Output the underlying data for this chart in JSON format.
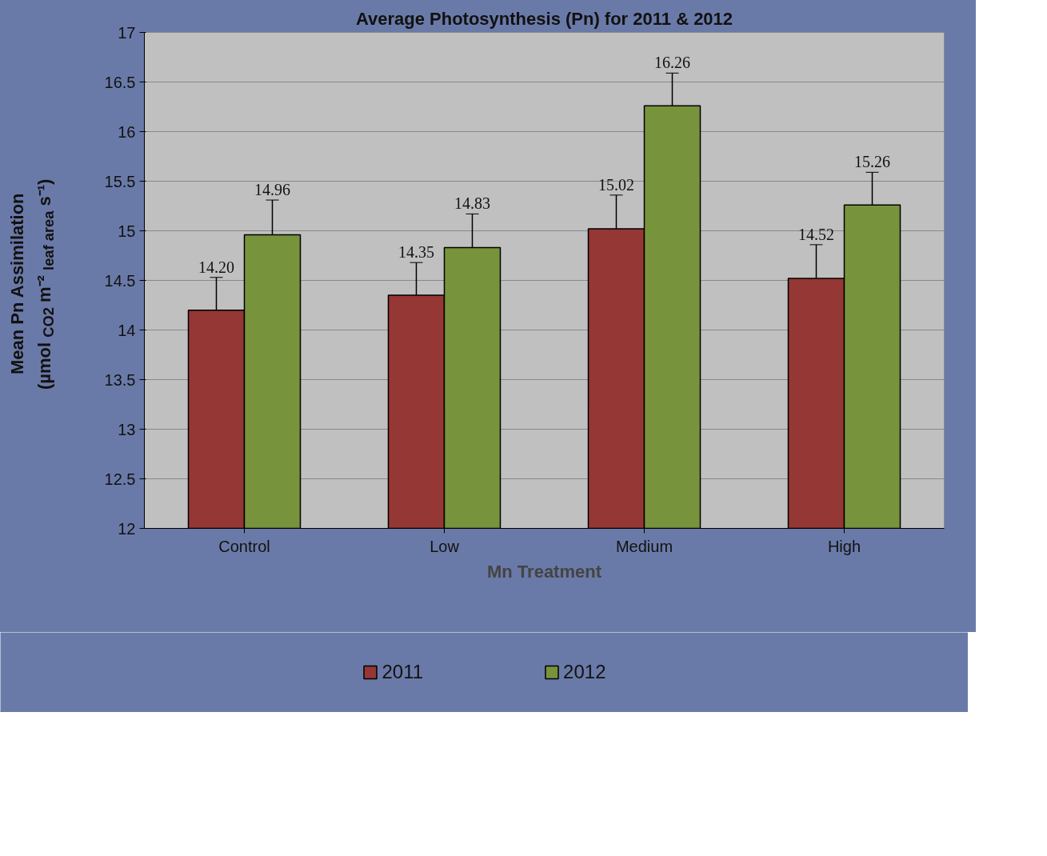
{
  "chart_data": {
    "type": "bar",
    "title": "Average Photosynthesis (Pn) for 2011 & 2012",
    "xlabel": "Mn Treatment",
    "ylabel": "Mean Pn Assimilation\n(µmol $_{CO2}$ m⁻² $_{leaf area}$ s⁻¹)",
    "categories": [
      "Control",
      "Low",
      "Medium",
      "High"
    ],
    "series": [
      {
        "name": "2011",
        "color": "#953735",
        "values": [
          14.2,
          14.35,
          15.02,
          14.52
        ],
        "errors": [
          0.33,
          0.33,
          0.34,
          0.34
        ],
        "value_labels": [
          "14.20",
          "14.35",
          "15.02",
          "14.52"
        ]
      },
      {
        "name": "2012",
        "color": "#77933c",
        "values": [
          14.96,
          14.83,
          16.26,
          15.26
        ],
        "errors": [
          0.35,
          0.34,
          0.33,
          0.33
        ],
        "value_labels": [
          "14.96",
          "14.83",
          "16.26",
          "15.26"
        ]
      }
    ],
    "ylim": [
      12,
      17
    ],
    "yticks": [
      12,
      12.5,
      13,
      13.5,
      14,
      14.5,
      15,
      15.5,
      16,
      16.5,
      17
    ],
    "grid": "y",
    "legend": "bottom"
  }
}
